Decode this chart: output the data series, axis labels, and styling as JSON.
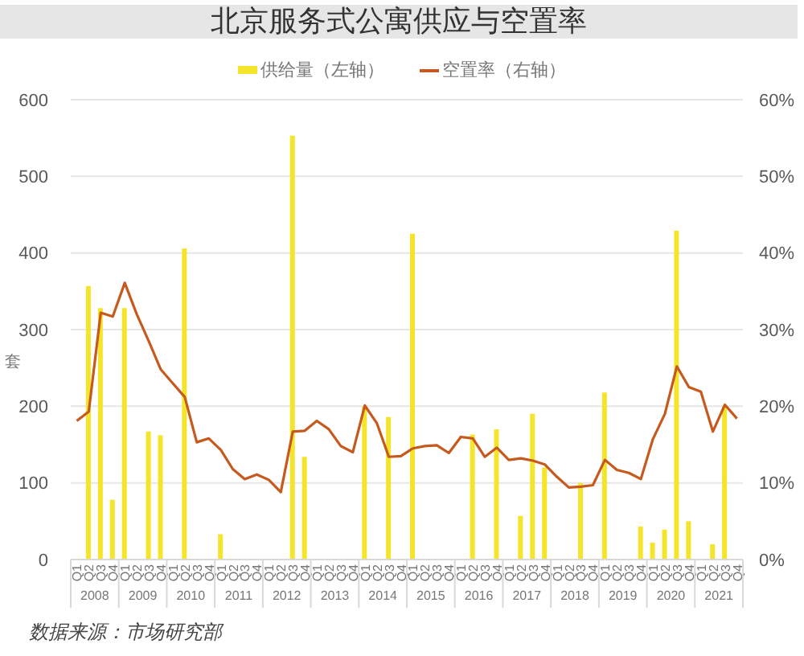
{
  "chart_data": {
    "type": "bar",
    "title": "北京服务式公寓供应与空置率",
    "ylabel": "套",
    "categories": [
      "Q1",
      "Q2",
      "Q3",
      "Q4",
      "Q1",
      "Q2",
      "Q3",
      "Q4",
      "Q1",
      "Q2",
      "Q3",
      "Q4",
      "Q1",
      "Q2",
      "Q3",
      "Q4",
      "Q1",
      "Q2",
      "Q3",
      "Q4",
      "Q1",
      "Q2",
      "Q3",
      "Q4",
      "Q1",
      "Q2",
      "Q3",
      "Q4",
      "Q1",
      "Q2",
      "Q3",
      "Q4",
      "Q1",
      "Q2",
      "Q3",
      "Q4",
      "Q1",
      "Q2",
      "Q3",
      "Q4",
      "Q1",
      "Q2",
      "Q3",
      "Q4",
      "Q1",
      "Q2",
      "Q3",
      "Q4",
      "Q1",
      "Q2",
      "Q3",
      "Q4",
      "Q1",
      "Q2",
      "Q3",
      "Q4"
    ],
    "series": [
      {
        "name": "供给量（左轴）",
        "color": "#f5e52a",
        "values": [
          null,
          357,
          328,
          78,
          328,
          null,
          167,
          162,
          null,
          406,
          null,
          null,
          33,
          null,
          null,
          null,
          null,
          null,
          553,
          134,
          null,
          null,
          null,
          null,
          200,
          null,
          186,
          null,
          425,
          null,
          null,
          null,
          null,
          163,
          null,
          170,
          null,
          57,
          190,
          120,
          null,
          null,
          100,
          null,
          218,
          null,
          null,
          43,
          22,
          39,
          429,
          50,
          null,
          20,
          200,
          null
        ]
      },
      {
        "name": "空置率（右轴）",
        "type": "line",
        "axis": "y2",
        "color": "#c65a1e",
        "values": [
          18.1,
          19.3,
          32.2,
          31.7,
          36.1,
          32.0,
          28.5,
          24.8,
          23.0,
          21.2,
          15.3,
          15.8,
          14.3,
          11.8,
          10.5,
          11.1,
          10.4,
          8.8,
          16.7,
          16.8,
          18.1,
          17.0,
          14.8,
          14.0,
          20.1,
          17.8,
          13.4,
          13.5,
          14.5,
          14.8,
          14.9,
          13.9,
          16.0,
          15.8,
          13.4,
          14.6,
          13.0,
          13.2,
          12.9,
          12.4,
          10.8,
          9.4,
          9.5,
          9.7,
          13.0,
          11.7,
          11.3,
          10.5,
          15.7,
          19.0,
          25.2,
          22.5,
          21.9,
          16.7,
          20.2,
          18.4
        ]
      }
    ],
    "ylim": [
      0,
      600
    ],
    "yticks": [
      0,
      100,
      200,
      300,
      400,
      500,
      600
    ],
    "y2lim": [
      0,
      60
    ],
    "y2ticks": [
      {
        "value": 0,
        "label": "0%"
      },
      {
        "value": 10,
        "label": "10%"
      },
      {
        "value": 20,
        "label": "20%"
      },
      {
        "value": 30,
        "label": "30%"
      },
      {
        "value": 40,
        "label": "40%"
      },
      {
        "value": 50,
        "label": "50%"
      },
      {
        "value": 60,
        "label": "60%"
      }
    ],
    "grid": "y",
    "legend": "top",
    "annotations": [
      "2008",
      "2009",
      "2010",
      "2011",
      "2012",
      "2013",
      "2014",
      "2015",
      "2016",
      "2017",
      "2018",
      "2019",
      "2020",
      "2021",
      "数据来源：市场研究部"
    ]
  }
}
